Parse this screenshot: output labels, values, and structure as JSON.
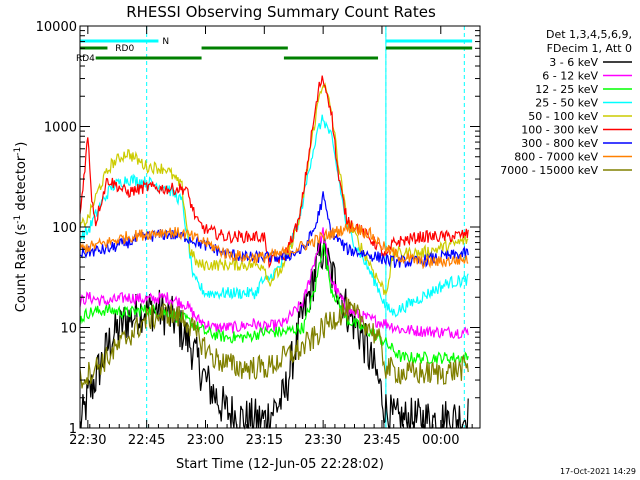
{
  "chart_data": {
    "type": "line",
    "title": "RHESSI Observing Summary Count Rates",
    "xlabel": "Start Time (12-Jun-05 22:28:02)",
    "ylabel_main": "Count Rate (s",
    "ylabel_sup1": "-1",
    "ylabel_mid": " detector",
    "ylabel_sup2": "-1",
    "ylabel_end": ")",
    "yscale": "log",
    "ylim": [
      1,
      10000
    ],
    "xlim_minutes": [
      -2,
      100
    ],
    "x_ticks": [
      {
        "label": "22:30",
        "value": 0
      },
      {
        "label": "22:45",
        "value": 15
      },
      {
        "label": "23:00",
        "value": 30
      },
      {
        "label": "23:15",
        "value": 45
      },
      {
        "label": "23:30",
        "value": 60
      },
      {
        "label": "23:45",
        "value": 75
      },
      {
        "label": "00:00",
        "value": 90
      }
    ],
    "y_ticks": [
      {
        "label": "1",
        "value": 1
      },
      {
        "label": "10",
        "value": 10
      },
      {
        "label": "100",
        "value": 100
      },
      {
        "label": "1000",
        "value": 1000
      },
      {
        "label": "10000",
        "value": 10000
      }
    ],
    "legend_header": [
      "Det 1,3,4,5,6,9,",
      "FDecim 1, Att 0"
    ],
    "legend_position": "right",
    "flags": [
      {
        "label": "N",
        "color": "#00ffff",
        "segments": [
          [
            -2,
            18
          ],
          [
            76,
            98
          ]
        ]
      },
      {
        "label": "RD0",
        "color": "#008000",
        "segments": [
          [
            -2,
            5
          ],
          [
            29,
            51
          ],
          [
            76,
            98
          ]
        ]
      },
      {
        "label": "RD4",
        "color": "#008000",
        "segments": [
          [
            2,
            29
          ],
          [
            50,
            74
          ]
        ]
      }
    ],
    "vlines_cyan_solid": [
      -2,
      76
    ],
    "vlines_cyan_dashed": [
      15,
      76,
      96
    ],
    "series": [
      {
        "name": "3 - 6 keV",
        "color": "#000000",
        "x": [
          -2,
          0,
          3,
          6,
          10,
          14,
          18,
          22,
          26,
          30,
          35,
          40,
          45,
          50,
          54,
          57,
          59,
          60,
          62,
          64,
          66,
          70,
          74,
          76,
          78,
          85,
          92,
          97
        ],
        "y": [
          1,
          2,
          4,
          8,
          12,
          15,
          15,
          12,
          7,
          3,
          1.5,
          1.2,
          1.2,
          2,
          10,
          25,
          50,
          60,
          35,
          25,
          15,
          8,
          3,
          1.5,
          1.2,
          1.2,
          1.2,
          1.3
        ]
      },
      {
        "name": "6 - 12 keV",
        "color": "#ff00ff",
        "x": [
          -2,
          0,
          5,
          10,
          15,
          20,
          25,
          28,
          32,
          38,
          42,
          45,
          50,
          55,
          58,
          60,
          62,
          66,
          72,
          76,
          80,
          90,
          97
        ],
        "y": [
          18,
          20,
          18,
          20,
          19,
          20,
          17,
          12,
          10,
          10,
          11,
          10,
          11,
          18,
          50,
          90,
          30,
          15,
          12,
          11,
          9.5,
          9,
          9
        ]
      },
      {
        "name": "12 - 25 keV",
        "color": "#00ff00",
        "x": [
          -2,
          0,
          5,
          10,
          15,
          20,
          25,
          30,
          35,
          40,
          45,
          50,
          55,
          58,
          60,
          62,
          66,
          72,
          76,
          80,
          90,
          97
        ],
        "y": [
          12,
          14,
          15,
          14,
          15,
          14,
          12,
          9,
          8,
          8,
          9,
          9,
          10,
          25,
          70,
          25,
          12,
          9,
          7,
          5,
          5,
          5
        ]
      },
      {
        "name": "25 - 50 keV",
        "color": "#00ffff",
        "x": [
          -2,
          0,
          3,
          6,
          10,
          15,
          20,
          24,
          27,
          30,
          35,
          40,
          43,
          44,
          46,
          50,
          54,
          57,
          59,
          60,
          62,
          64,
          66,
          70,
          74,
          76,
          78,
          85,
          92,
          97
        ],
        "y": [
          80,
          90,
          160,
          250,
          300,
          280,
          250,
          180,
          30,
          22,
          22,
          22,
          22,
          28,
          30,
          45,
          120,
          500,
          1000,
          1200,
          800,
          300,
          100,
          50,
          25,
          16,
          14,
          20,
          28,
          30
        ]
      },
      {
        "name": "50 - 100 keV",
        "color": "#cccc00",
        "x": [
          -2,
          0,
          3,
          6,
          10,
          15,
          20,
          24,
          26,
          28,
          32,
          40,
          45,
          46,
          50,
          54,
          57,
          59,
          60,
          62,
          64,
          66,
          70,
          74,
          76,
          78,
          85,
          92,
          97
        ],
        "y": [
          100,
          120,
          250,
          420,
          550,
          400,
          380,
          250,
          60,
          42,
          42,
          42,
          42,
          28,
          40,
          120,
          700,
          2000,
          2800,
          1500,
          400,
          120,
          60,
          30,
          22,
          55,
          55,
          65,
          75
        ]
      },
      {
        "name": "100 - 300 keV",
        "color": "#ff0000",
        "x": [
          -2,
          0,
          1,
          2,
          3,
          5,
          10,
          15,
          20,
          25,
          28,
          30,
          35,
          40,
          45,
          46,
          50,
          54,
          57,
          59,
          60,
          62,
          64,
          66,
          70,
          74,
          76,
          78,
          85,
          92,
          97
        ],
        "y": [
          130,
          800,
          200,
          110,
          160,
          300,
          220,
          250,
          240,
          240,
          110,
          95,
          80,
          80,
          80,
          45,
          50,
          120,
          800,
          2500,
          3000,
          1500,
          300,
          120,
          90,
          65,
          50,
          70,
          80,
          80,
          85
        ]
      },
      {
        "name": "300 - 800 keV",
        "color": "#0000ff",
        "x": [
          -2,
          5,
          10,
          15,
          20,
          25,
          30,
          35,
          40,
          45,
          50,
          55,
          58,
          60,
          62,
          66,
          70,
          74,
          78,
          84,
          90,
          97
        ],
        "y": [
          55,
          60,
          70,
          80,
          85,
          80,
          65,
          55,
          50,
          50,
          50,
          60,
          100,
          200,
          90,
          60,
          55,
          50,
          45,
          45,
          50,
          55
        ]
      },
      {
        "name": "800 - 7000 keV",
        "color": "#ff8000",
        "x": [
          -2,
          5,
          10,
          15,
          20,
          25,
          30,
          35,
          40,
          45,
          50,
          55,
          60,
          65,
          68,
          72,
          76,
          80,
          85,
          90,
          97
        ],
        "y": [
          60,
          70,
          80,
          85,
          90,
          85,
          70,
          55,
          50,
          50,
          55,
          65,
          80,
          95,
          100,
          85,
          60,
          50,
          45,
          45,
          48
        ]
      },
      {
        "name": "7000 - 15000 keV",
        "color": "#808000",
        "x": [
          -2,
          2,
          5,
          10,
          15,
          20,
          25,
          28,
          32,
          38,
          42,
          46,
          50,
          54,
          58,
          62,
          66,
          70,
          74,
          76,
          80,
          90,
          97
        ],
        "y": [
          3,
          4,
          5,
          8,
          12,
          14,
          12,
          8,
          5,
          4,
          4,
          4,
          5,
          6,
          8,
          12,
          15,
          12,
          8,
          4,
          3.5,
          3.5,
          4
        ]
      }
    ]
  },
  "timestamp": "17-Oct-2021 14:29"
}
